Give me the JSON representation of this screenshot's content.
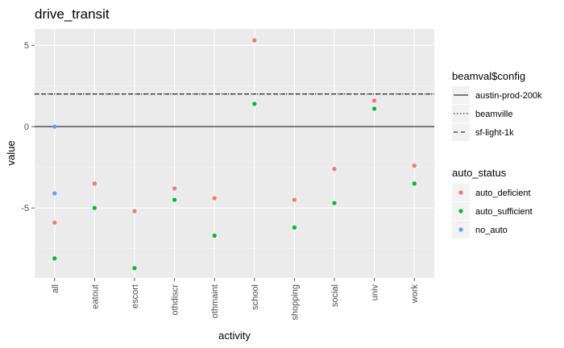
{
  "chart_data": {
    "type": "scatter",
    "title": "drive_transit",
    "xlabel": "activity",
    "ylabel": "value",
    "categories": [
      "all",
      "eatout",
      "escort",
      "othdiscr",
      "othmaint",
      "school",
      "shopping",
      "social",
      "univ",
      "work"
    ],
    "ylim": [
      -9.3,
      6.0
    ],
    "yticks": [
      -5,
      0,
      5
    ],
    "ytick_labels": [
      "-5",
      "0",
      "5"
    ],
    "grid": true,
    "legend_position": "right",
    "series": [
      {
        "name": "auto_deficient",
        "color": "#F8766D",
        "points": [
          {
            "x": "all",
            "y": -5.9
          },
          {
            "x": "eatout",
            "y": -3.5
          },
          {
            "x": "escort",
            "y": -5.2
          },
          {
            "x": "othdiscr",
            "y": -3.8
          },
          {
            "x": "othmaint",
            "y": -4.4
          },
          {
            "x": "school",
            "y": 5.3
          },
          {
            "x": "shopping",
            "y": -4.5
          },
          {
            "x": "social",
            "y": -2.6
          },
          {
            "x": "univ",
            "y": 1.6
          },
          {
            "x": "work",
            "y": -2.4
          }
        ]
      },
      {
        "name": "auto_sufficient",
        "color": "#00BA38",
        "points": [
          {
            "x": "all",
            "y": -8.1
          },
          {
            "x": "eatout",
            "y": -5.0
          },
          {
            "x": "escort",
            "y": -8.7
          },
          {
            "x": "othdiscr",
            "y": -4.5
          },
          {
            "x": "othmaint",
            "y": -6.7
          },
          {
            "x": "school",
            "y": 1.4
          },
          {
            "x": "shopping",
            "y": -6.2
          },
          {
            "x": "social",
            "y": -4.7
          },
          {
            "x": "univ",
            "y": 1.1
          },
          {
            "x": "work",
            "y": -3.5
          }
        ]
      },
      {
        "name": "no_auto",
        "color": "#619CFF",
        "points": [
          {
            "x": "all",
            "y": 0.0
          },
          {
            "x": "all",
            "y": -4.1
          }
        ]
      }
    ],
    "reference_lines": [
      {
        "name": "austin-prod-200k",
        "y": 0,
        "style": "solid"
      },
      {
        "name": "beamville",
        "y": 2.0,
        "style": "dotted"
      },
      {
        "name": "sf-light-1k",
        "y": 2.0,
        "style": "dashed"
      }
    ],
    "legend": {
      "linetype_title": "beamval$config",
      "color_title": "auto_status"
    }
  }
}
